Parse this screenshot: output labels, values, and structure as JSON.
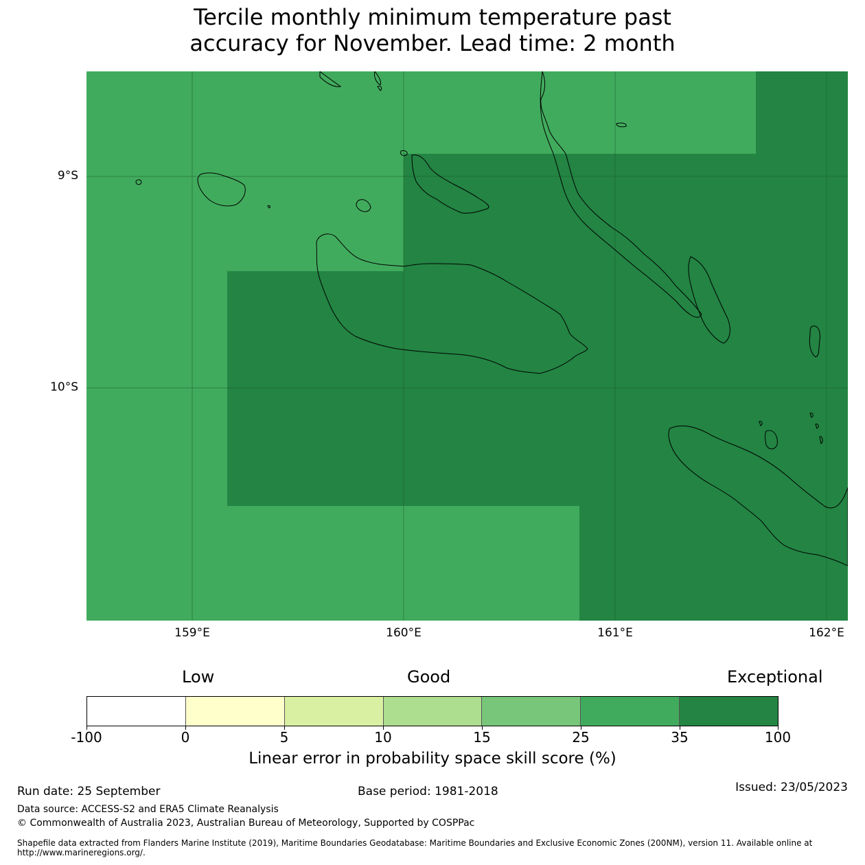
{
  "title": {
    "line1": "Tercile monthly minimum temperature past",
    "line2": "accuracy for November. Lead time: 2 month"
  },
  "map": {
    "lat_labels": [
      "9°S",
      "10°S"
    ],
    "lon_labels": [
      "159°E",
      "160°E",
      "161°E",
      "162°E"
    ],
    "colors": {
      "good_25_35": "#41ab5d",
      "exceptional_35_100": "#238443"
    }
  },
  "colorbar": {
    "categories": {
      "low": "Low",
      "good": "Good",
      "exceptional": "Exceptional"
    },
    "ticks": [
      "-100",
      "0",
      "5",
      "10",
      "15",
      "25",
      "35",
      "100"
    ],
    "colors": [
      "#ffffff",
      "#ffffcc",
      "#d9f0a3",
      "#addd8e",
      "#78c679",
      "#41ab5d",
      "#238443"
    ],
    "label": "Linear error in probability space skill score (%)"
  },
  "footer": {
    "run_date": "Run date: 25 September",
    "base_period": "Base period: 1981-2018",
    "issued": "Issued: 23/05/2023",
    "data_source": "Data source: ACCESS-S2 and ERA5 Climate Reanalysis",
    "copyright": "© Commonwealth of Australia 2023, Australian Bureau of Meteorology, Supported by COSPPac",
    "shapefile_line1": "Shapefile data extracted from Flanders Marine Institute (2019), Maritime Boundaries Geodatabase: Maritime Boundaries and Exclusive Economic Zones (200NM), version 11. Available online at",
    "shapefile_line2": "http://www.marineregions.org/."
  }
}
